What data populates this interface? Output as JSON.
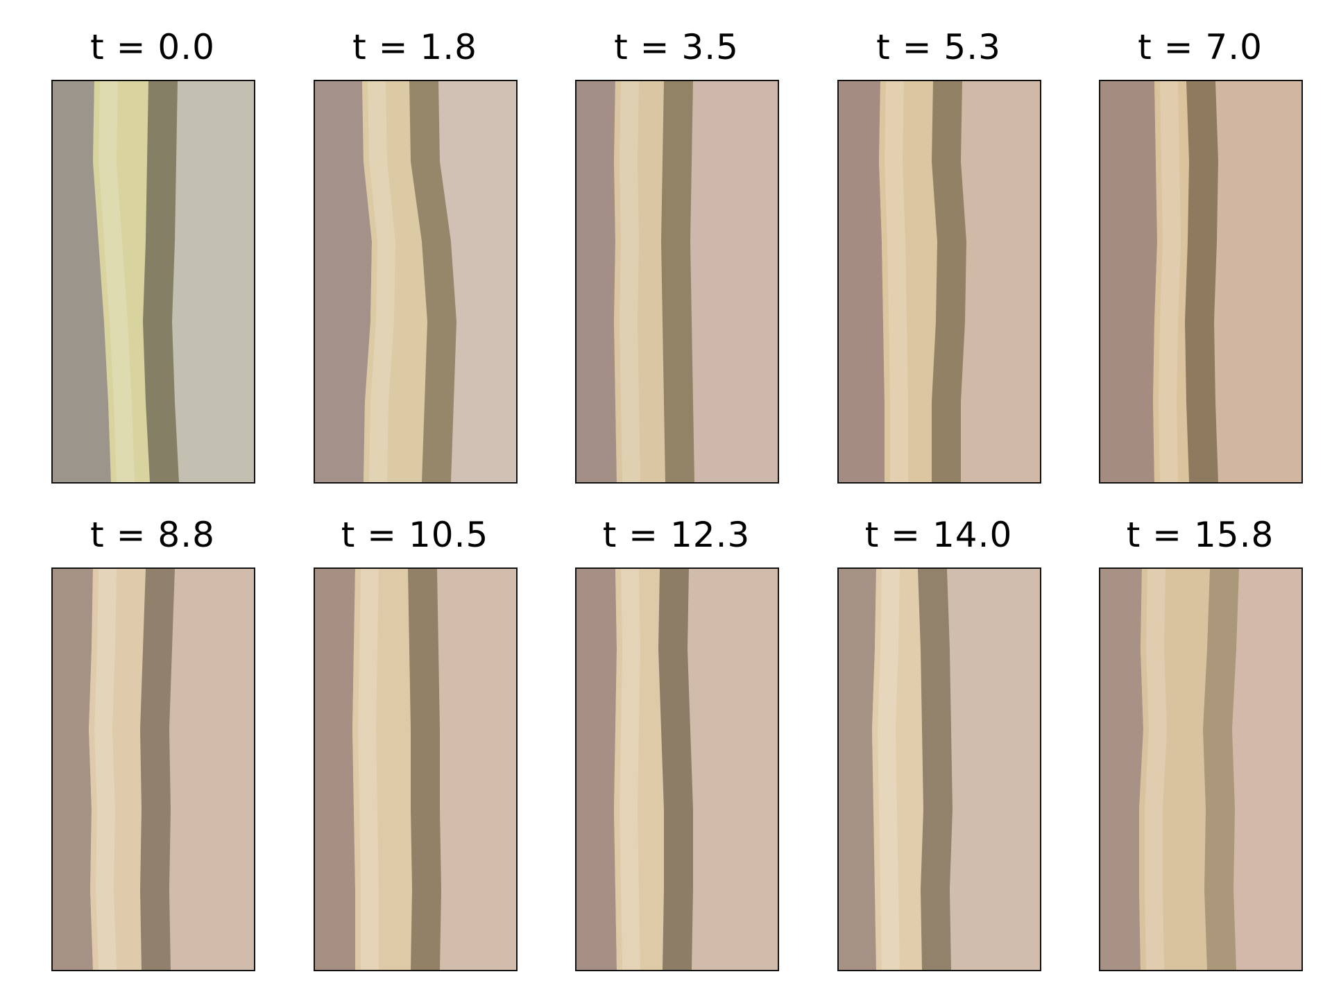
{
  "figure": {
    "panels": [
      {
        "title": "t = 0.0",
        "palette": {
          "left": "#9c958c",
          "right": "#c3c0b2",
          "stem": "#d8d39f",
          "shadow": "#77705a"
        }
      },
      {
        "title": "t = 1.8",
        "palette": {
          "left": "#a4918a",
          "right": "#d1c1b5",
          "stem": "#dccaa4",
          "shadow": "#8a7b60"
        }
      },
      {
        "title": "t = 3.5",
        "palette": {
          "left": "#a48f86",
          "right": "#cdb8ab",
          "stem": "#dac6a2",
          "shadow": "#85765c"
        }
      },
      {
        "title": "t = 5.3",
        "palette": {
          "left": "#a48c82",
          "right": "#d1b9a7",
          "stem": "#dcc6a0",
          "shadow": "#85745b"
        }
      },
      {
        "title": "t = 7.0",
        "palette": {
          "left": "#a48c80",
          "right": "#d1b7a2",
          "stem": "#dbc39d",
          "shadow": "#7f6d55"
        }
      },
      {
        "title": "t = 8.8",
        "palette": {
          "left": "#a69185",
          "right": "#d1bbab",
          "stem": "#dfcbab",
          "shadow": "#847360"
        }
      },
      {
        "title": "t = 10.5",
        "palette": {
          "left": "#a69084",
          "right": "#d2bcab",
          "stem": "#dfcaa8",
          "shadow": "#85745c"
        }
      },
      {
        "title": "t = 12.3",
        "palette": {
          "left": "#a69085",
          "right": "#d1bbab",
          "stem": "#dfcaa8",
          "shadow": "#7f6f5a"
        }
      },
      {
        "title": "t = 14.0",
        "palette": {
          "left": "#a69185",
          "right": "#d1bdae",
          "stem": "#e1cdac",
          "shadow": "#847460"
        }
      },
      {
        "title": "t = 15.8",
        "palette": {
          "left": "#a79285",
          "right": "#d3b9a9",
          "stem": "#d9c39f",
          "shadow": "#a28f72"
        }
      }
    ]
  }
}
